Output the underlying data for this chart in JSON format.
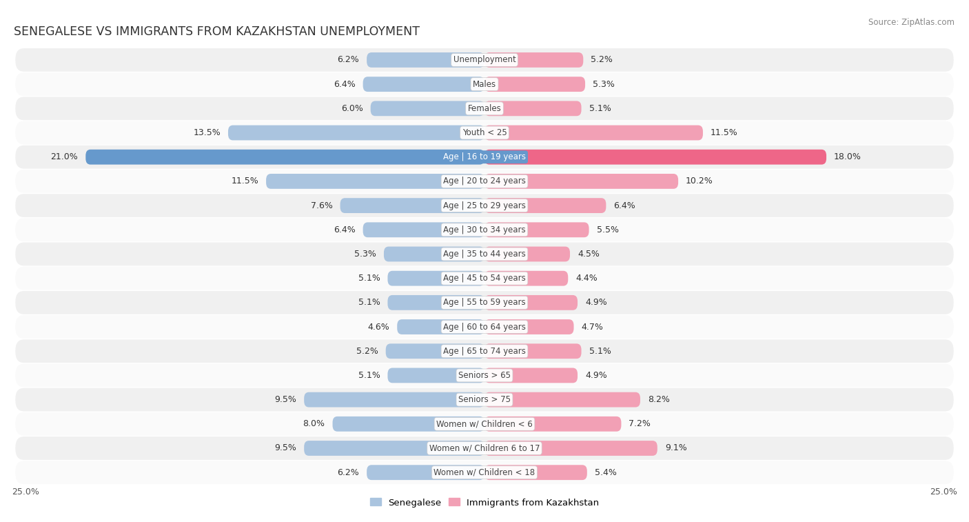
{
  "title": "SENEGALESE VS IMMIGRANTS FROM KAZAKHSTAN UNEMPLOYMENT",
  "source": "Source: ZipAtlas.com",
  "categories": [
    "Unemployment",
    "Males",
    "Females",
    "Youth < 25",
    "Age | 16 to 19 years",
    "Age | 20 to 24 years",
    "Age | 25 to 29 years",
    "Age | 30 to 34 years",
    "Age | 35 to 44 years",
    "Age | 45 to 54 years",
    "Age | 55 to 59 years",
    "Age | 60 to 64 years",
    "Age | 65 to 74 years",
    "Seniors > 65",
    "Seniors > 75",
    "Women w/ Children < 6",
    "Women w/ Children 6 to 17",
    "Women w/ Children < 18"
  ],
  "senegalese": [
    6.2,
    6.4,
    6.0,
    13.5,
    21.0,
    11.5,
    7.6,
    6.4,
    5.3,
    5.1,
    5.1,
    4.6,
    5.2,
    5.1,
    9.5,
    8.0,
    9.5,
    6.2
  ],
  "kazakhstan": [
    5.2,
    5.3,
    5.1,
    11.5,
    18.0,
    10.2,
    6.4,
    5.5,
    4.5,
    4.4,
    4.9,
    4.7,
    5.1,
    4.9,
    8.2,
    7.2,
    9.1,
    5.4
  ],
  "blue_color": "#aac4df",
  "pink_color": "#f2a0b5",
  "blue_highlight": "#6699cc",
  "pink_highlight": "#ee6688",
  "row_odd_color": "#f0f0f0",
  "row_even_color": "#fafafa",
  "axis_max": 25.0,
  "bar_height": 0.62,
  "label_fontsize": 9.0,
  "category_fontsize": 8.5,
  "title_fontsize": 12.5,
  "source_fontsize": 8.5,
  "legend_blue": "Senegalese",
  "legend_pink": "Immigrants from Kazakhstan",
  "bottom_label": "25.0%"
}
